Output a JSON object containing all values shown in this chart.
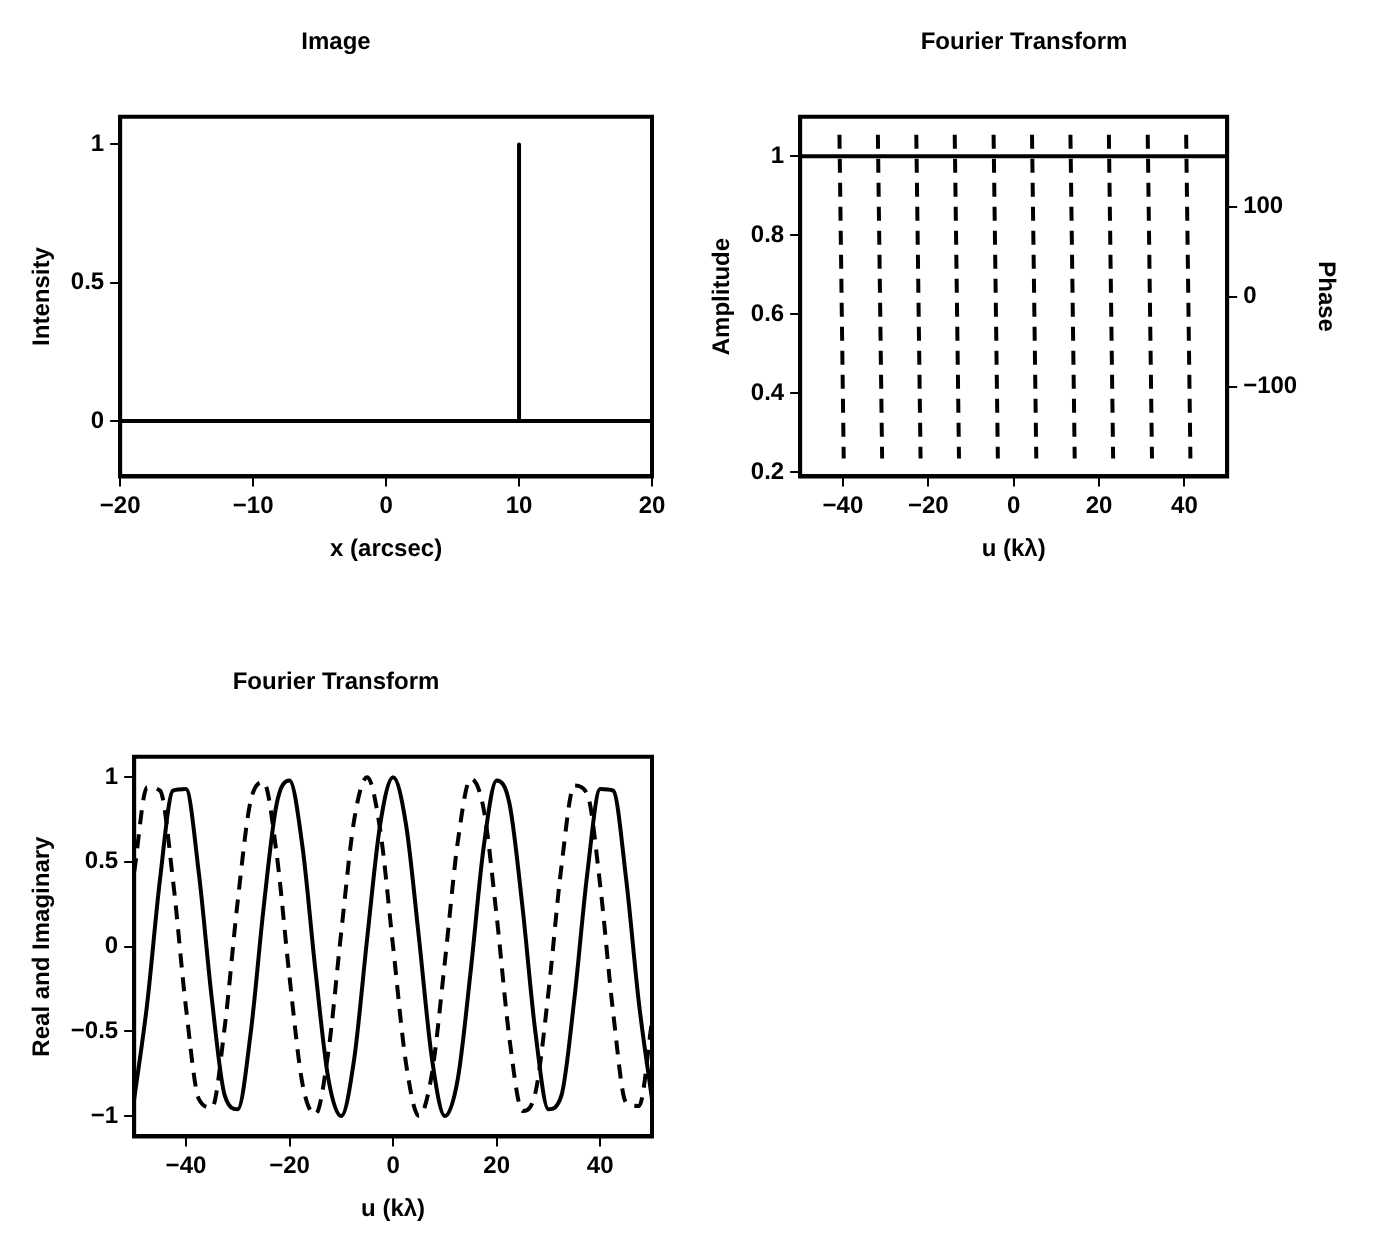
{
  "chart_data": [
    {
      "type": "line",
      "title": "Image",
      "xlabel": "x (arcsec)",
      "ylabel": "Intensity",
      "xlim": [
        -20,
        20
      ],
      "xticks": [
        -20,
        -10,
        0,
        10,
        20
      ],
      "ylim": [
        -0.2,
        1.1
      ],
      "yticks": [
        0,
        0.5,
        1
      ],
      "grid": false,
      "legend": false,
      "series": [
        {
          "color": "#000000",
          "line_style": "solid",
          "x": [
            -20,
            10,
            10,
            10,
            20
          ],
          "values": [
            0,
            0,
            1,
            0,
            0
          ]
        }
      ]
    },
    {
      "type": "line",
      "title": "Fourier Transform",
      "xlabel": "u (kλ)",
      "ylabel": "Amplitude",
      "y2label": "Phase",
      "xlim": [
        -50,
        50
      ],
      "xticks": [
        -40,
        -20,
        0,
        20,
        40
      ],
      "ylim": [
        0.19,
        1.1
      ],
      "yticks": [
        0.2,
        0.4,
        0.6,
        0.8,
        1
      ],
      "y2lim": [
        -200,
        200
      ],
      "y2ticks": [
        -100,
        0,
        100
      ],
      "grid": false,
      "legend": false,
      "series": [
        {
          "color": "#000000",
          "line_style": "solid",
          "x": [
            -50,
            50
          ],
          "values": [
            1,
            1
          ]
        },
        {
          "color": "#000000",
          "line_style": "dashed",
          "axis": "y2",
          "x": [
            -40.8,
            -39.8,
            -39.3,
            -31.8,
            -30.8,
            -30.3,
            -22.8,
            -21.8,
            -21.3,
            -13.8,
            -12.8,
            -12.3,
            -4.7,
            -3.7,
            -3.2,
            4.3,
            5.3,
            5.8,
            13.3,
            14.3,
            14.8,
            22.3,
            23.3,
            23.8,
            31.4,
            32.4,
            32.9,
            40.4,
            41.4
          ],
          "values": [
            180,
            -180,
            null,
            180,
            -180,
            null,
            180,
            -180,
            null,
            180,
            -180,
            null,
            180,
            -180,
            null,
            180,
            -180,
            null,
            180,
            -180,
            null,
            180,
            -180,
            null,
            180,
            -180,
            null,
            180,
            -180
          ]
        }
      ]
    },
    {
      "type": "line",
      "title": "Fourier Transform",
      "xlabel": "u (kλ)",
      "ylabel": "Real and Imaginary",
      "xlim": [
        -50,
        50
      ],
      "xticks": [
        -40,
        -20,
        0,
        20,
        40
      ],
      "ylim": [
        -1.12,
        1.12
      ],
      "yticks": [
        -1,
        -0.5,
        0,
        0.5,
        1
      ],
      "grid": false,
      "legend": false,
      "x": [
        -50,
        -47.5,
        -45,
        -42.5,
        -40,
        -37.5,
        -35,
        -32.5,
        -30,
        -27.5,
        -25,
        -22.5,
        -20,
        -17.5,
        -15,
        -12.5,
        -10,
        -7.5,
        -5,
        -2.5,
        0,
        2.5,
        5,
        7.5,
        10,
        12.5,
        15,
        17.5,
        20,
        22.5,
        25,
        27.5,
        30,
        32.5,
        35,
        37.5,
        40,
        42.5,
        45,
        47.5,
        50
      ],
      "series": [
        {
          "color": "#000000",
          "line_style": "solid",
          "values": [
            -0.9,
            -0.34,
            0.4,
            0.92,
            0.93,
            0.43,
            -0.31,
            -0.88,
            -0.96,
            -0.51,
            0.23,
            0.84,
            0.98,
            0.59,
            -0.14,
            -0.78,
            -1.0,
            -0.66,
            0.05,
            0.72,
            1,
            0.72,
            0.05,
            -0.66,
            -1.0,
            -0.78,
            -0.14,
            0.59,
            0.98,
            0.84,
            0.23,
            -0.51,
            -0.96,
            -0.88,
            -0.31,
            0.43,
            0.93,
            0.92,
            0.4,
            -0.34,
            -0.9
          ]
        },
        {
          "color": "#000000",
          "line_style": "dashed",
          "values": [
            0.44,
            0.94,
            0.92,
            0.39,
            -0.36,
            -0.9,
            -0.95,
            -0.47,
            0.27,
            0.86,
            0.97,
            0.55,
            -0.18,
            -0.81,
            -0.99,
            -0.62,
            0.09,
            0.75,
            1.0,
            0.69,
            0,
            -0.69,
            -1.0,
            -0.75,
            -0.09,
            0.62,
            0.99,
            0.81,
            0.18,
            -0.55,
            -0.97,
            -0.86,
            -0.27,
            0.47,
            0.95,
            0.9,
            0.36,
            -0.39,
            -0.92,
            -0.94,
            -0.44
          ]
        }
      ]
    }
  ]
}
